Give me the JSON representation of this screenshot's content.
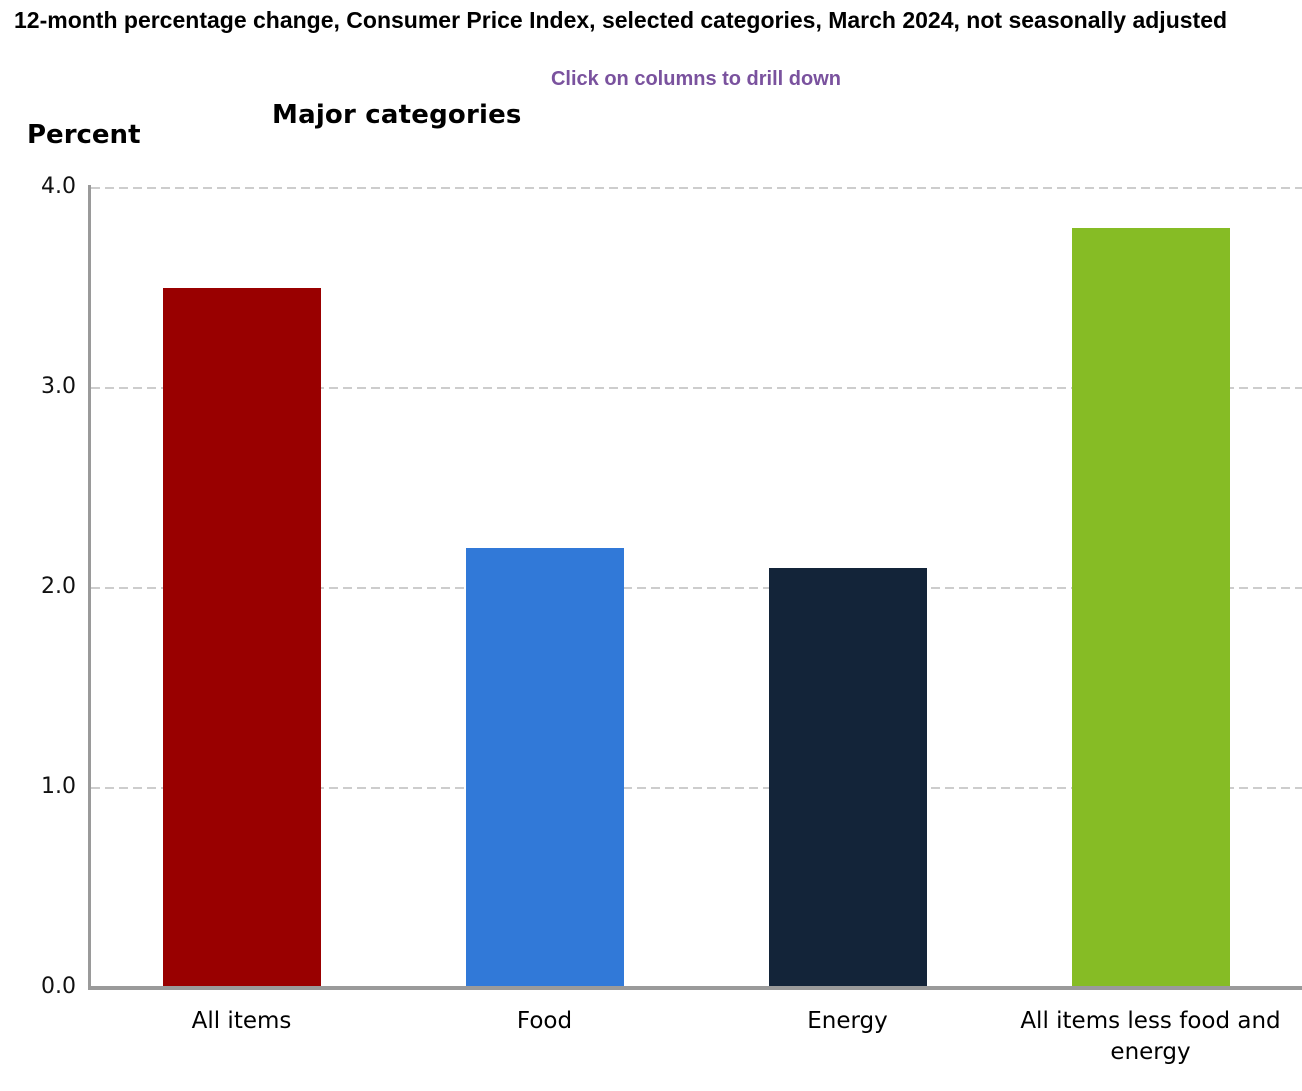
{
  "header": {
    "title": "12-month percentage change, Consumer Price Index, selected categories, March 2024, not seasonally adjusted",
    "drilldown_hint": "Click on columns to drill down"
  },
  "chart": {
    "heading": "Major categories",
    "y_axis_title": "Percent"
  },
  "chart_data": {
    "type": "bar",
    "title": "Major categories",
    "subtitle": "Click on columns to drill down",
    "xlabel": "",
    "ylabel": "Percent",
    "categories": [
      "All items",
      "Food",
      "Energy",
      "All items less food and energy"
    ],
    "values": [
      3.5,
      2.2,
      2.1,
      3.8
    ],
    "bar_colors": [
      "#990000",
      "#3179d8",
      "#132439",
      "#86bc25"
    ],
    "ylim": [
      0.0,
      4.0
    ],
    "ytick_labels": [
      "0.0",
      "1.0",
      "2.0",
      "3.0",
      "4.0"
    ],
    "grid": "horizontal-dashed",
    "legend": "none",
    "interaction": "columns are clickable to drill down"
  },
  "colors": {
    "hint_text": "#7a529e",
    "axis_line": "#9a9a9a",
    "gridline": "#cdcdcd",
    "title_text": "#000000"
  }
}
